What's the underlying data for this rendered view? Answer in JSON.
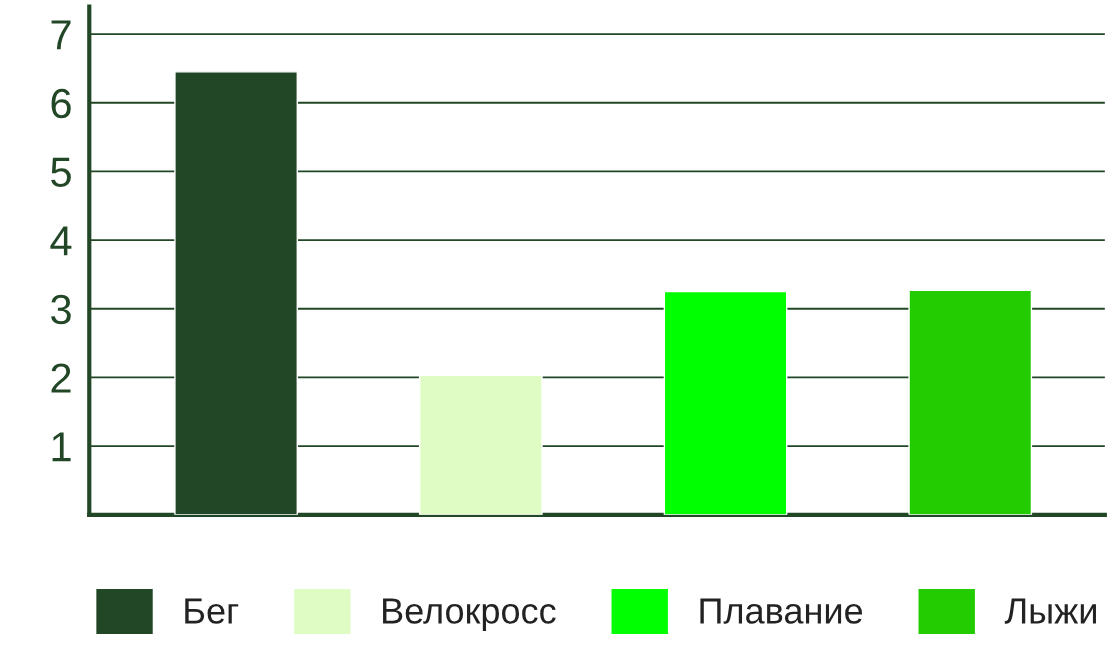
{
  "chart_data": {
    "type": "bar",
    "categories": [
      null,
      null,
      null,
      null
    ],
    "series": [
      {
        "name": "Бег",
        "color": "#224726",
        "values": [
          6.45,
          null,
          null,
          null
        ]
      },
      {
        "name": "Велокросс",
        "color": "#dffcc4",
        "values": [
          null,
          2.03,
          null,
          null
        ]
      },
      {
        "name": "Плавание",
        "color": "#00ff00",
        "values": [
          null,
          null,
          3.25,
          null
        ]
      },
      {
        "name": "Лыжи",
        "color": "#22cc00",
        "values": [
          null,
          null,
          null,
          3.27
        ]
      }
    ],
    "ylim": [
      0,
      7.4
    ],
    "yticks": [
      {
        "value": 0,
        "label": null
      },
      1,
      2,
      3,
      4,
      5,
      6,
      7
    ],
    "grid": "y",
    "legend": "bottom"
  }
}
